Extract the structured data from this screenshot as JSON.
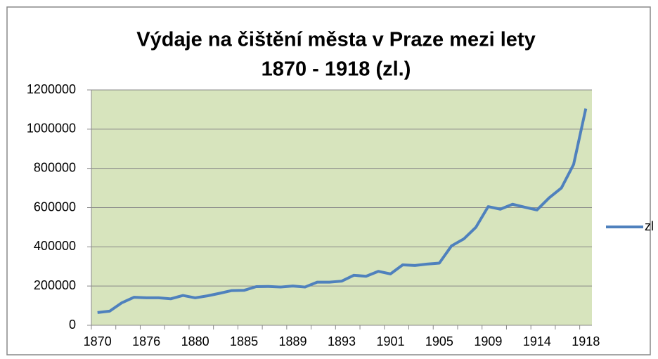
{
  "chart_data": {
    "type": "line",
    "title": [
      "Výdaje na čištění města v Praze mezi lety",
      "1870 - 1918 (zl.)"
    ],
    "categories": [
      "1870",
      null,
      null,
      null,
      "1876",
      null,
      null,
      null,
      "1880",
      null,
      null,
      null,
      "1885",
      null,
      null,
      null,
      "1889",
      null,
      null,
      null,
      "1893",
      null,
      null,
      null,
      "1901",
      null,
      null,
      null,
      "1905",
      null,
      null,
      null,
      "1909",
      null,
      null,
      null,
      "1914",
      null,
      null,
      null,
      "1918"
    ],
    "series": [
      {
        "name": "zl",
        "color": "#4f81bd",
        "values": [
          65000,
          72000,
          115000,
          143000,
          140000,
          140000,
          135000,
          152000,
          140000,
          150000,
          163000,
          177000,
          178000,
          197000,
          198000,
          195000,
          200000,
          195000,
          220000,
          220000,
          225000,
          255000,
          250000,
          275000,
          262000,
          308000,
          305000,
          312000,
          317000,
          405000,
          440000,
          500000,
          605000,
          592000,
          617000,
          602000,
          588000,
          650000,
          700000,
          820000,
          1105000
        ]
      }
    ],
    "ylim": [
      0,
      1200000
    ],
    "yticks": [
      0,
      200000,
      400000,
      600000,
      800000,
      1000000,
      1200000
    ],
    "grid": true,
    "legend": "right"
  }
}
